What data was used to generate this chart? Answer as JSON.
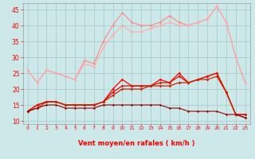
{
  "x": [
    0,
    1,
    2,
    3,
    4,
    5,
    6,
    7,
    8,
    9,
    10,
    11,
    12,
    13,
    14,
    15,
    16,
    17,
    18,
    19,
    20,
    21,
    22,
    23
  ],
  "line1": [
    26,
    22,
    26,
    25,
    24,
    23,
    29,
    28,
    35,
    40,
    44,
    41,
    40,
    40,
    41,
    43,
    41,
    40,
    41,
    42,
    46,
    41,
    30,
    22
  ],
  "line2": [
    26,
    22,
    26,
    25,
    24,
    23,
    28,
    27,
    33,
    37,
    40,
    38,
    38,
    39,
    40,
    41,
    40,
    40,
    41,
    42,
    46,
    41,
    30,
    22
  ],
  "line3": [
    13,
    15,
    16,
    16,
    15,
    15,
    15,
    15,
    16,
    20,
    23,
    21,
    21,
    21,
    23,
    22,
    25,
    22,
    23,
    24,
    25,
    19,
    12,
    12
  ],
  "line4": [
    13,
    15,
    16,
    16,
    15,
    15,
    15,
    15,
    16,
    19,
    21,
    21,
    21,
    21,
    22,
    22,
    24,
    22,
    23,
    24,
    25,
    19,
    12,
    12
  ],
  "line5": [
    13,
    14,
    16,
    16,
    15,
    15,
    15,
    15,
    16,
    18,
    20,
    20,
    20,
    21,
    21,
    21,
    22,
    22,
    23,
    23,
    24,
    19,
    12,
    11
  ],
  "line6": [
    13,
    14,
    15,
    15,
    14,
    14,
    14,
    14,
    15,
    15,
    15,
    15,
    15,
    15,
    15,
    14,
    14,
    13,
    13,
    13,
    13,
    12,
    12,
    11
  ],
  "bg_color": "#cce8e8",
  "grid_color": "#aacccc",
  "line1_color": "#ff8888",
  "line2_color": "#ffaaaa",
  "line3_color": "#ff0000",
  "line4_color": "#dd1100",
  "line5_color": "#cc2200",
  "line6_color": "#990000",
  "xlabel": "Vent moyen/en rafales ( km/h )",
  "ylim": [
    9,
    47
  ],
  "yticks": [
    10,
    15,
    20,
    25,
    30,
    35,
    40,
    45
  ],
  "xticks": [
    0,
    1,
    2,
    3,
    4,
    5,
    6,
    7,
    8,
    9,
    10,
    11,
    12,
    13,
    14,
    15,
    16,
    17,
    18,
    19,
    20,
    21,
    22,
    23
  ]
}
